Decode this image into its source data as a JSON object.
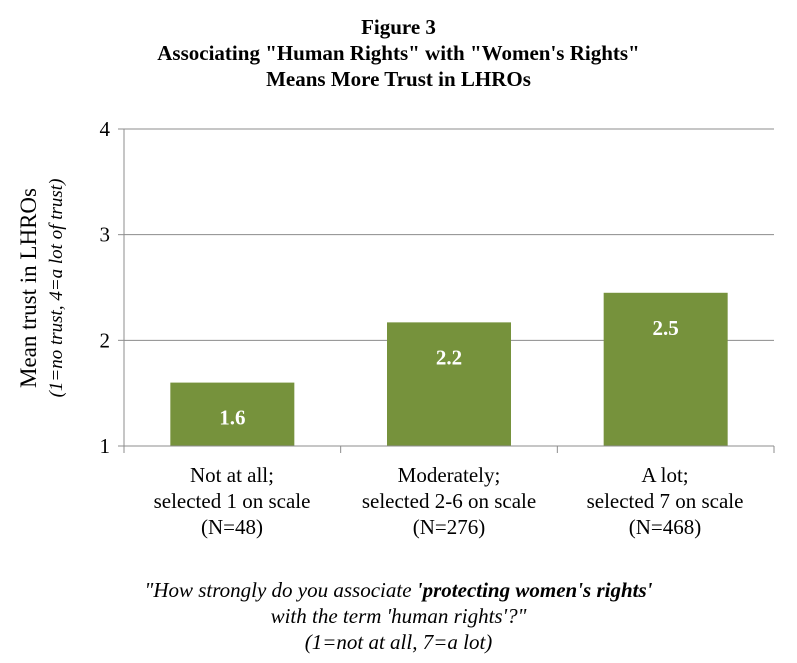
{
  "chart_data": {
    "type": "bar",
    "title_lines": [
      "Figure 3",
      "Associating \"Human Rights\" with \"Women's Rights\"",
      "Means More Trust in LHROs"
    ],
    "ylabel": "Mean trust in LHROs",
    "ylabel_sub": "(1=no trust, 4=a lot of trust)",
    "ylim": [
      1,
      4
    ],
    "yticks": [
      "1",
      "2",
      "3",
      "4"
    ],
    "categories": [
      [
        "Not at all;",
        "selected 1 on scale",
        "(N=48)"
      ],
      [
        "Moderately;",
        "selected 2-6 on scale",
        "(N=276)"
      ],
      [
        "A lot;",
        "selected 7 on scale",
        "(N=468)"
      ]
    ],
    "values": [
      1.6,
      2.17,
      2.45
    ],
    "data_labels": [
      "1.6",
      "2.2",
      "2.5"
    ],
    "bar_color": "#76923C",
    "grid": true,
    "xlabel": {
      "line1_prefix": "\"How strongly do you associate ",
      "line1_bold": "'protecting women's rights'",
      "line2": "with the term 'human rights'?\"",
      "line3": "(1=not at all, 7=a lot)"
    }
  }
}
